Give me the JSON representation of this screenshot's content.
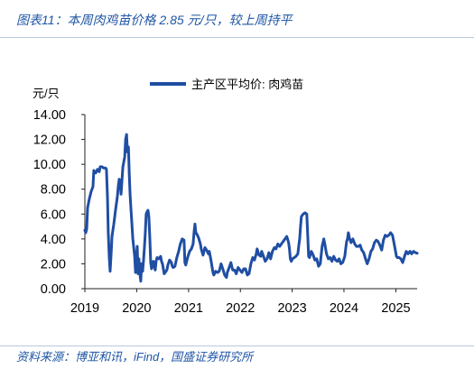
{
  "source": "资料来源：博亚和讯，iFind，国盛证券研究所",
  "chart_data": {
    "type": "line",
    "title": "图表11：本周肉鸡苗价格 2.85 元/只，较上周持平",
    "xlabel": "",
    "ylabel": "元/只",
    "xlim": [
      "2019-01-01",
      "2025-05-31"
    ],
    "ylim": [
      0,
      14
    ],
    "x_ticks": [
      "2019",
      "2020",
      "2021",
      "2022",
      "2023",
      "2024",
      "2025"
    ],
    "y_ticks": [
      "0.00",
      "2.00",
      "4.00",
      "6.00",
      "8.00",
      "10.00",
      "12.00",
      "14.00"
    ],
    "grid": false,
    "legend": "top-center",
    "series": [
      {
        "name": "主产区平均价: 肉鸡苗",
        "color": "#1f4ea3",
        "x": [
          "2019-01-01",
          "2019-01-07",
          "2019-01-14",
          "2019-01-20",
          "2019-02-01",
          "2019-02-14",
          "2019-02-27",
          "2019-03-05",
          "2019-03-18",
          "2019-03-31",
          "2019-04-12",
          "2019-04-19",
          "2019-05-01",
          "2019-05-14",
          "2019-05-27",
          "2019-06-02",
          "2019-06-09",
          "2019-06-15",
          "2019-06-22",
          "2019-06-28",
          "2019-07-05",
          "2019-07-11",
          "2019-07-24",
          "2019-08-06",
          "2019-08-18",
          "2019-08-25",
          "2019-08-31",
          "2019-09-07",
          "2019-09-13",
          "2019-09-20",
          "2019-09-26",
          "2019-10-09",
          "2019-10-15",
          "2019-10-22",
          "2019-10-28",
          "2019-11-04",
          "2019-11-10",
          "2019-11-16",
          "2019-11-23",
          "2019-12-05",
          "2019-12-18",
          "2019-12-24",
          "2020-01-05",
          "2020-01-11",
          "2020-01-17",
          "2020-01-24",
          "2020-01-30",
          "2020-02-05",
          "2020-02-12",
          "2020-02-18",
          "2020-02-24",
          "2020-03-02",
          "2020-03-08",
          "2020-03-15",
          "2020-03-21",
          "2020-03-27",
          "2020-04-03",
          "2020-04-09",
          "2020-04-15",
          "2020-04-22",
          "2020-04-28",
          "2020-05-04",
          "2020-05-11",
          "2020-05-17",
          "2020-05-24",
          "2020-06-05",
          "2020-06-18",
          "2020-06-24",
          "2020-07-01",
          "2020-07-07",
          "2020-07-13",
          "2020-07-20",
          "2020-08-01",
          "2020-08-08",
          "2020-08-20",
          "2020-09-02",
          "2020-09-08",
          "2020-09-15",
          "2020-09-27",
          "2020-10-10",
          "2020-10-23",
          "2020-11-04",
          "2020-11-17",
          "2020-11-30",
          "2020-12-06",
          "2020-12-12",
          "2020-12-25",
          "2021-01-08",
          "2021-01-21",
          "2021-02-02",
          "2021-02-09",
          "2021-02-15",
          "2021-02-21",
          "2021-02-28",
          "2021-03-12",
          "2021-03-25",
          "2021-03-31",
          "2021-04-13",
          "2021-04-26",
          "2021-05-08",
          "2021-05-21",
          "2021-05-27",
          "2021-06-09",
          "2021-06-22",
          "2021-06-28",
          "2021-07-11",
          "2021-07-23",
          "2021-08-05",
          "2021-08-18",
          "2021-08-30",
          "2021-09-12",
          "2021-09-25",
          "2021-10-01",
          "2021-10-14",
          "2021-10-26",
          "2021-11-08",
          "2021-11-21",
          "2021-12-03",
          "2021-12-16",
          "2021-12-29",
          "2022-01-12",
          "2022-01-25",
          "2022-02-06",
          "2022-02-19",
          "2022-03-03",
          "2022-03-16",
          "2022-03-29",
          "2022-04-10",
          "2022-04-23",
          "2022-04-29",
          "2022-05-12",
          "2022-05-25",
          "2022-05-31",
          "2022-06-13",
          "2022-06-25",
          "2022-07-08",
          "2022-07-21",
          "2022-08-02",
          "2022-08-15",
          "2022-08-28",
          "2022-09-09",
          "2022-09-22",
          "2022-10-05",
          "2022-10-17",
          "2022-10-30",
          "2022-11-11",
          "2022-11-24",
          "2022-12-07",
          "2022-12-13",
          "2022-12-19",
          "2022-12-26",
          "2023-01-03",
          "2023-01-16",
          "2023-01-28",
          "2023-02-10",
          "2023-02-16",
          "2023-02-23",
          "2023-03-01",
          "2023-03-07",
          "2023-03-20",
          "2023-04-02",
          "2023-04-14",
          "2023-04-21",
          "2023-04-27",
          "2023-05-03",
          "2023-05-16",
          "2023-05-29",
          "2023-06-10",
          "2023-06-23",
          "2023-07-06",
          "2023-07-18",
          "2023-07-31",
          "2023-08-12",
          "2023-08-19",
          "2023-08-25",
          "2023-08-31",
          "2023-09-13",
          "2023-09-26",
          "2023-10-08",
          "2023-10-21",
          "2023-11-03",
          "2023-11-15",
          "2023-11-28",
          "2023-12-10",
          "2023-12-23",
          "2024-01-07",
          "2024-01-13",
          "2024-01-20",
          "2024-01-26",
          "2024-02-01",
          "2024-02-08",
          "2024-02-20",
          "2024-03-04",
          "2024-03-17",
          "2024-03-29",
          "2024-04-11",
          "2024-04-24",
          "2024-05-06",
          "2024-05-19",
          "2024-06-01",
          "2024-06-13",
          "2024-06-26",
          "2024-07-09",
          "2024-07-21",
          "2024-08-03",
          "2024-08-16",
          "2024-08-28",
          "2024-09-10",
          "2024-09-23",
          "2024-10-05",
          "2024-10-18",
          "2024-10-31",
          "2024-11-12",
          "2024-11-25",
          "2024-12-08",
          "2024-12-20",
          "2025-01-05",
          "2025-01-11",
          "2025-01-24",
          "2025-02-05",
          "2025-02-18",
          "2025-03-03",
          "2025-03-15",
          "2025-03-28",
          "2025-04-10",
          "2025-04-22",
          "2025-05-05",
          "2025-05-18",
          "2025-05-31"
        ],
        "y": [
          4.7,
          4.5,
          4.8,
          6.5,
          7.2,
          7.8,
          8.2,
          9.5,
          9.3,
          9.6,
          9.4,
          9.8,
          9.8,
          9.7,
          9.7,
          9.6,
          7.5,
          4.5,
          2.5,
          1.4,
          2.8,
          4.2,
          5.2,
          6.4,
          7.4,
          8.3,
          8.8,
          8.6,
          7.6,
          8.8,
          9.8,
          10.6,
          12.0,
          12.4,
          11.0,
          11.4,
          9.2,
          7.5,
          6.2,
          4.0,
          2.6,
          1.3,
          3.4,
          1.2,
          2.4,
          1.2,
          0.6,
          2.0,
          1.4,
          2.2,
          3.2,
          4.5,
          6.0,
          6.2,
          6.3,
          5.8,
          4.0,
          2.1,
          1.6,
          1.9,
          2.2,
          1.8,
          1.5,
          2.2,
          2.5,
          2.4,
          2.6,
          2.2,
          2.0,
          1.6,
          1.2,
          1.3,
          1.5,
          1.9,
          2.3,
          2.1,
          1.8,
          1.7,
          1.8,
          2.5,
          3.0,
          3.6,
          4.0,
          3.9,
          2.1,
          1.9,
          2.5,
          3.0,
          3.2,
          3.6,
          4.6,
          5.2,
          4.5,
          4.4,
          4.1,
          3.6,
          3.2,
          2.7,
          3.3,
          3.1,
          2.8,
          3.0,
          2.2,
          1.3,
          1.1,
          1.4,
          1.3,
          1.4,
          2.0,
          1.6,
          1.1,
          0.9,
          1.3,
          1.7,
          2.1,
          1.5,
          1.5,
          1.2,
          1.7,
          1.5,
          1.3,
          1.6,
          1.6,
          1.1,
          1.2,
          2.0,
          2.5,
          2.3,
          2.8,
          3.2,
          2.7,
          2.6,
          3.0,
          2.6,
          2.2,
          2.4,
          2.9,
          2.4,
          3.0,
          3.3,
          3.2,
          3.6,
          3.4,
          3.6,
          3.8,
          4.0,
          4.2,
          3.7,
          3.2,
          2.4,
          2.2,
          2.4,
          2.5,
          2.6,
          2.8,
          3.4,
          4.0,
          5.0,
          5.8,
          6.0,
          6.1,
          6.0,
          4.2,
          2.6,
          2.5,
          3.0,
          2.7,
          2.3,
          2.4,
          1.8,
          2.0,
          3.4,
          4.0,
          3.6,
          3.2,
          2.8,
          2.4,
          2.5,
          2.2,
          2.6,
          2.3,
          2.2,
          2.4,
          2.0,
          2.1,
          2.6,
          3.2,
          3.8,
          4.0,
          4.5,
          4.1,
          3.7,
          4.0,
          3.6,
          3.4,
          3.4,
          3.5,
          3.1,
          2.9,
          2.4,
          2.0,
          2.4,
          3.0,
          3.2,
          3.7,
          3.9,
          3.8,
          3.5,
          3.1,
          3.9,
          4.3,
          4.2,
          4.3,
          4.5,
          4.3,
          3.6,
          2.6,
          2.5,
          2.5,
          2.4,
          2.1,
          2.6,
          3.0,
          2.8,
          3.0,
          2.8,
          3.0,
          2.9,
          2.85
        ]
      }
    ]
  }
}
